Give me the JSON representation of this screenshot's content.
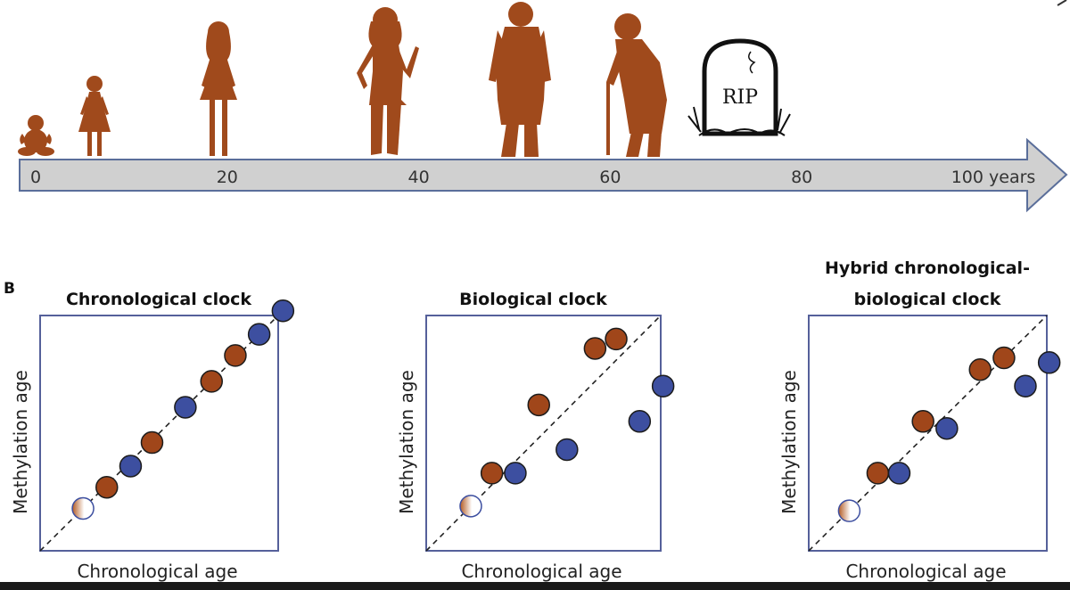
{
  "timeline": {
    "ticks": [
      {
        "label": "0",
        "value": 0
      },
      {
        "label": "20",
        "value": 20
      },
      {
        "label": "40",
        "value": 40
      },
      {
        "label": "60",
        "value": 60
      },
      {
        "label": "80",
        "value": 80
      },
      {
        "label": "100 years",
        "value": 100
      }
    ],
    "tombstone_text": "RIP",
    "arrow_color": "#d0d0d0",
    "arrow_stroke": "#5a6e9a",
    "silhouette_color": "#a04a1c"
  },
  "panel_b": {
    "label": "B",
    "xlabel": "Chronological age",
    "ylabel": "Methylation age",
    "colors": {
      "red": "#a0461a",
      "blue": "#3d4fa0",
      "frame": "#55609a"
    }
  },
  "chart_data": [
    {
      "type": "scatter",
      "title": "Chronological clock",
      "xlabel": "Chronological age",
      "ylabel": "Methylation age",
      "xlim": [
        0,
        10
      ],
      "ylim": [
        0,
        10
      ],
      "diagonal": true,
      "points": [
        {
          "x": 1.8,
          "y": 1.8,
          "color": "gradient"
        },
        {
          "x": 2.8,
          "y": 2.7,
          "color": "red"
        },
        {
          "x": 3.8,
          "y": 3.6,
          "color": "blue"
        },
        {
          "x": 4.7,
          "y": 4.6,
          "color": "red"
        },
        {
          "x": 6.1,
          "y": 6.1,
          "color": "blue"
        },
        {
          "x": 7.2,
          "y": 7.2,
          "color": "red"
        },
        {
          "x": 8.2,
          "y": 8.3,
          "color": "red"
        },
        {
          "x": 9.2,
          "y": 9.2,
          "color": "blue"
        },
        {
          "x": 10.2,
          "y": 10.2,
          "color": "blue"
        }
      ]
    },
    {
      "type": "scatter",
      "title": "Biological clock",
      "xlabel": "Chronological age",
      "ylabel": "Methylation age",
      "xlim": [
        0,
        10
      ],
      "ylim": [
        0,
        10
      ],
      "diagonal": true,
      "points": [
        {
          "x": 1.9,
          "y": 1.9,
          "color": "gradient"
        },
        {
          "x": 2.8,
          "y": 3.3,
          "color": "red"
        },
        {
          "x": 3.8,
          "y": 3.3,
          "color": "blue"
        },
        {
          "x": 4.8,
          "y": 6.2,
          "color": "red"
        },
        {
          "x": 6.0,
          "y": 4.3,
          "color": "blue"
        },
        {
          "x": 7.2,
          "y": 8.6,
          "color": "red"
        },
        {
          "x": 8.1,
          "y": 9.0,
          "color": "red"
        },
        {
          "x": 9.1,
          "y": 5.5,
          "color": "blue"
        },
        {
          "x": 10.1,
          "y": 7.0,
          "color": "blue"
        }
      ]
    },
    {
      "type": "scatter",
      "title": "Hybrid chronological-biological clock",
      "xlabel": "Chronological age",
      "ylabel": "Methylation age",
      "xlim": [
        0,
        10
      ],
      "ylim": [
        0,
        10
      ],
      "diagonal": true,
      "points": [
        {
          "x": 1.7,
          "y": 1.7,
          "color": "gradient"
        },
        {
          "x": 2.9,
          "y": 3.3,
          "color": "red"
        },
        {
          "x": 3.8,
          "y": 3.3,
          "color": "blue"
        },
        {
          "x": 4.8,
          "y": 5.5,
          "color": "red"
        },
        {
          "x": 5.8,
          "y": 5.2,
          "color": "blue"
        },
        {
          "x": 7.2,
          "y": 7.7,
          "color": "red"
        },
        {
          "x": 8.2,
          "y": 8.2,
          "color": "red"
        },
        {
          "x": 9.1,
          "y": 7.0,
          "color": "blue"
        },
        {
          "x": 10.1,
          "y": 8.0,
          "color": "blue"
        }
      ]
    }
  ]
}
